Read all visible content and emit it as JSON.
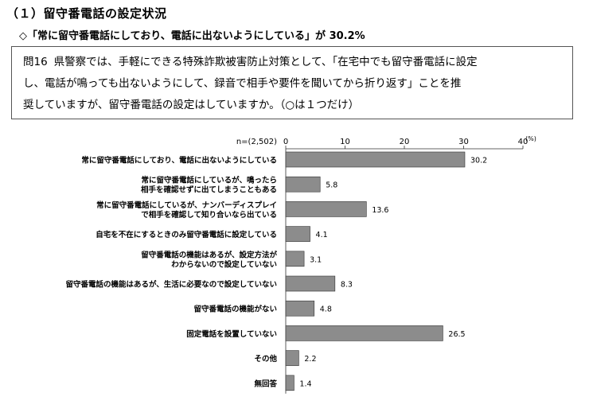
{
  "header": {
    "section_title": "（１）留守番電話の設定状況",
    "summary": "◇「常に留守番電話にしており、電話に出ないようにしている」が 30.2%"
  },
  "question": {
    "number": "問16",
    "line1": "県警察では、手軽にできる特殊詐欺被害防止対策として、「在宅中でも留守番電話に設定",
    "line2": "し、電話が鳴っても出ないようにして、録音で相手や要件を聞いてから折り返す」ことを推",
    "line3": "奨していますが、留守番電話の設定はしていますか。（○は１つだけ）"
  },
  "chart_data": {
    "type": "bar",
    "orientation": "horizontal",
    "n_label": "n=(2,502)",
    "unit": "(%)",
    "xlim": [
      0,
      40
    ],
    "ticks": [
      0,
      10,
      20,
      30,
      40
    ],
    "categories": [
      [
        "常に留守番電話にしており、電話に出ないようにしている"
      ],
      [
        "常に留守番電話にしているが、鳴ったら",
        "相手を確認せずに出てしまうこともある"
      ],
      [
        "常に留守番電話にしているが、ナンバーディスプレイ",
        "で相手を確認して知り合いなら出ている"
      ],
      [
        "自宅を不在にするときのみ留守番電話に設定している"
      ],
      [
        "留守番電話の機能はあるが、設定方法が",
        "わからないので設定していない"
      ],
      [
        "留守番電話の機能はあるが、生活に必要なので設定していない"
      ],
      [
        "留守番電話の機能がない"
      ],
      [
        "固定電話を設置していない"
      ],
      [
        "その他"
      ],
      [
        "無回答"
      ]
    ],
    "values": [
      30.2,
      5.8,
      13.6,
      4.1,
      3.1,
      8.3,
      4.8,
      26.5,
      2.2,
      1.4
    ],
    "value_labels": [
      "30.2",
      "5.8",
      "13.6",
      "4.1",
      "3.1",
      "8.3",
      "4.8",
      "26.5",
      "2.2",
      "1.4"
    ],
    "bar_color": "#8c8c8c",
    "grid": false,
    "legend": "none"
  }
}
